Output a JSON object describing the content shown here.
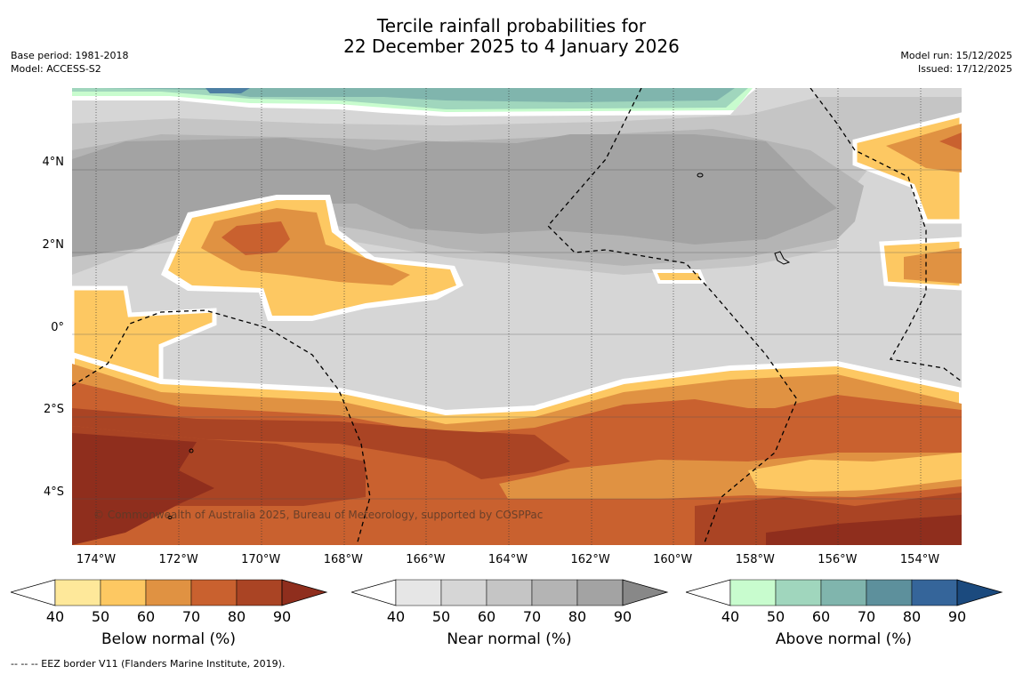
{
  "title": {
    "line1": "Tercile rainfall probabilities for",
    "line2": "22 December 2025 to 4 January 2026"
  },
  "meta_left": {
    "base_period": "Base period: 1981-2018",
    "model": "Model: ACCESS-S2"
  },
  "meta_right": {
    "model_run": "Model run: 15/12/2025",
    "issued": "Issued: 17/12/2025"
  },
  "map": {
    "lat_ticks": [
      "4°N",
      "2°N",
      "0°",
      "2°S",
      "4°S"
    ],
    "lon_ticks": [
      "174°W",
      "172°W",
      "170°W",
      "168°W",
      "166°W",
      "164°W",
      "162°W",
      "160°W",
      "158°W",
      "156°W",
      "154°W"
    ],
    "copyright": "© Commonwealth of Australia 2025, Bureau of Meteorology, supported by COSPPac"
  },
  "legends": [
    {
      "label": "Below normal (%)",
      "ticks": [
        "40",
        "50",
        "60",
        "70",
        "80",
        "90"
      ],
      "colors": [
        "#ffffff",
        "#fee89a",
        "#fdc862",
        "#e09242",
        "#c9612f",
        "#aa4424",
        "#8f2e1d"
      ]
    },
    {
      "label": "Near normal (%)",
      "ticks": [
        "40",
        "50",
        "60",
        "70",
        "80",
        "90"
      ],
      "colors": [
        "#ffffff",
        "#e6e6e6",
        "#d6d6d6",
        "#c5c5c5",
        "#b4b4b4",
        "#a3a3a3",
        "#888888"
      ]
    },
    {
      "label": "Above normal (%)",
      "ticks": [
        "40",
        "50",
        "60",
        "70",
        "80",
        "90"
      ],
      "colors": [
        "#ffffff",
        "#c8fcce",
        "#a0d6bd",
        "#80b5ad",
        "#5d909c",
        "#35659a",
        "#1b4a7e"
      ]
    }
  ],
  "footnote": "--  --  -- EEZ border V11 (Flanders Marine Institute, 2019)."
}
